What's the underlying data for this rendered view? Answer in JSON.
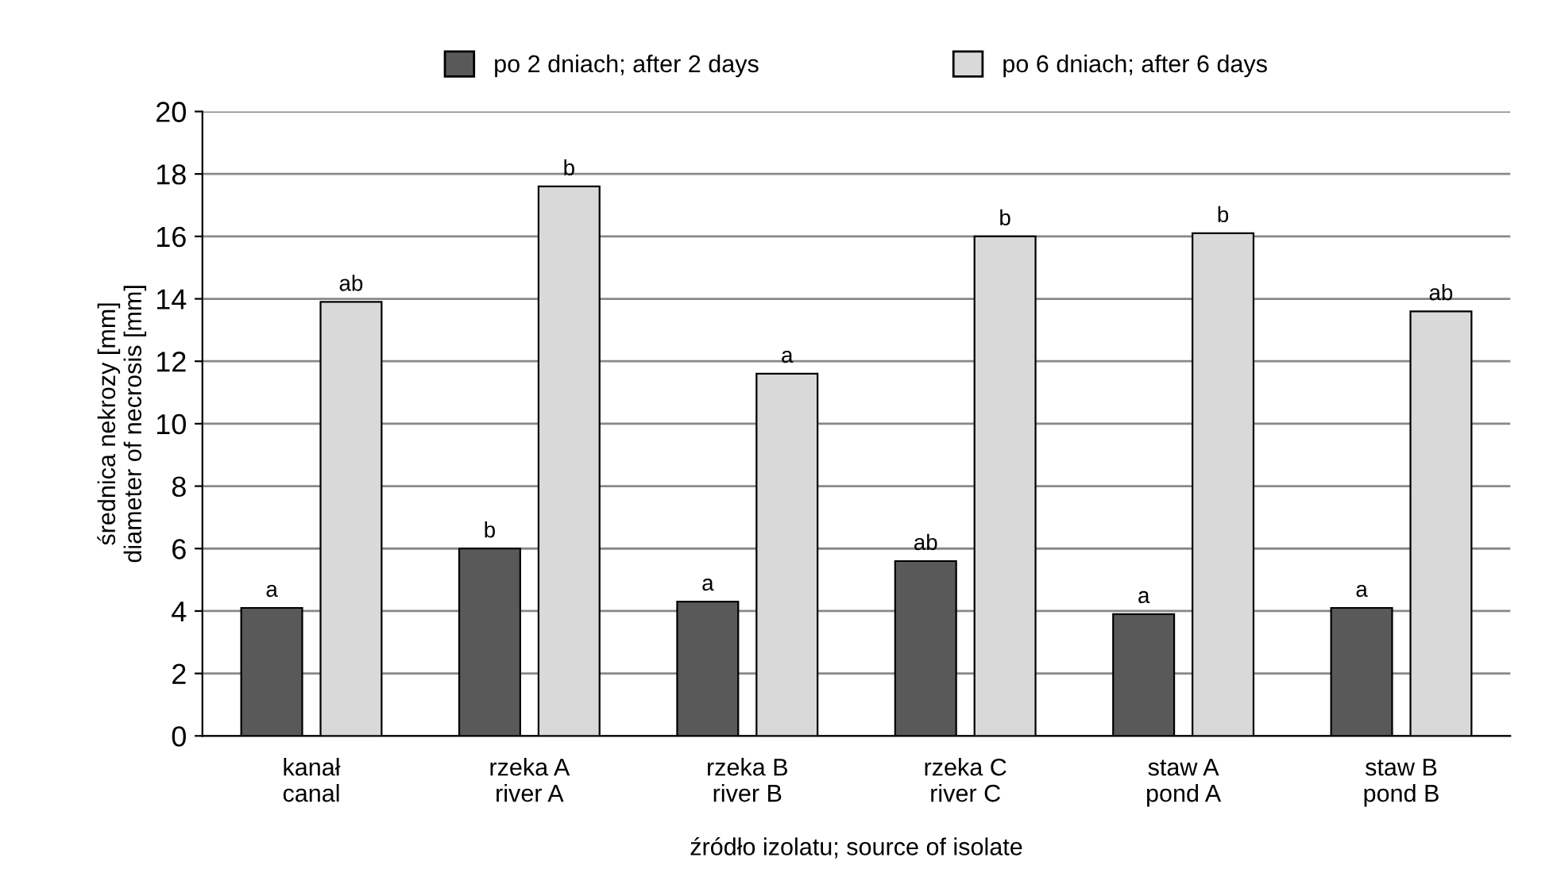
{
  "chart_data": {
    "type": "bar",
    "xlabel": "źródło izolatu; source of isolate",
    "ylabel": "średnica nekrozy [mm]\ndiameter of necrosis [mm]",
    "categories": [
      "kanał\ncanal",
      "rzeka A\nriver A",
      "rzeka B\nriver B",
      "rzeka C\nriver C",
      "staw A\npond A",
      "staw B\npond B"
    ],
    "series": [
      {
        "name": "po 2 dniach; after 2 days",
        "color": "#595959",
        "values": [
          4.1,
          6.0,
          4.3,
          5.6,
          3.9,
          4.1
        ],
        "value_labels": [
          "a",
          "b",
          "a",
          "ab",
          "a",
          "a"
        ]
      },
      {
        "name": "po 6 dniach; after 6 days",
        "color": "#d9d9d9",
        "values": [
          13.9,
          17.6,
          11.6,
          16.0,
          16.1,
          13.6
        ],
        "value_labels": [
          "ab",
          "b",
          "a",
          "b",
          "b",
          "ab"
        ]
      }
    ],
    "ylim": [
      0,
      20
    ],
    "yticks": [
      0,
      2,
      4,
      6,
      8,
      10,
      12,
      14,
      16,
      18,
      20
    ],
    "grid": "y",
    "legend": "top"
  }
}
